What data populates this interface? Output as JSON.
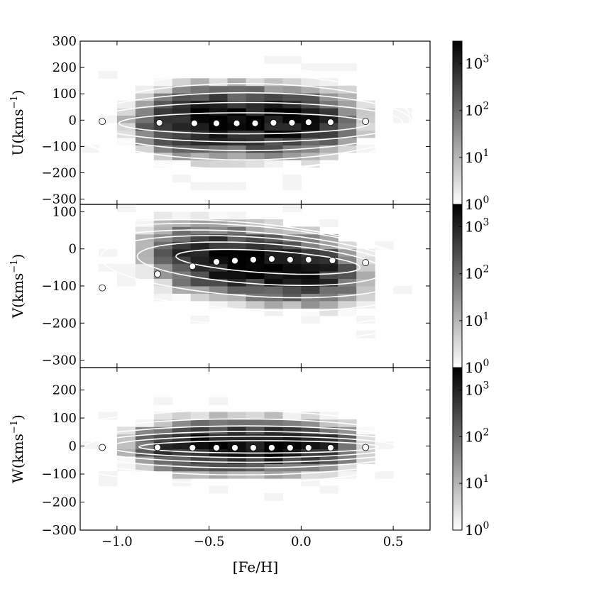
{
  "chart_data": {
    "type": "heatmap",
    "xlabel": "[Fe/H]",
    "xlim": [
      -1.2,
      0.7
    ],
    "xticks": [
      -1.0,
      -0.5,
      0.0,
      0.5
    ],
    "xtick_labels": [
      "−1.0",
      "−0.5",
      "0.0",
      "0.5"
    ],
    "bin_width": 0.1,
    "marker_color": "#ffffff",
    "contour_color": "#ffffff",
    "colormap": [
      "#ffffff",
      "#000000"
    ],
    "panels": [
      {
        "id": "U",
        "ylabel": "U(kms",
        "ylabel_sup": "−1",
        "ylabel_end": ")",
        "ylim": [
          -320,
          300
        ],
        "yticks": [
          300,
          200,
          100,
          0,
          -100,
          -200,
          -300
        ],
        "ytick_labels": [
          "300",
          "200",
          "100",
          "0",
          "−100",
          "−200",
          "−300"
        ],
        "center": [
          -0.3,
          -5
        ],
        "spread_x": 0.42,
        "spread_y": 70,
        "tilt": 0,
        "scatter": [
          [
            -1.08,
            -5
          ],
          [
            -0.77,
            -10
          ],
          [
            -0.58,
            -12
          ],
          [
            -0.46,
            -12
          ],
          [
            -0.35,
            -12
          ],
          [
            -0.25,
            -12
          ],
          [
            -0.15,
            -10
          ],
          [
            -0.05,
            -10
          ],
          [
            0.04,
            -8
          ],
          [
            0.16,
            -8
          ],
          [
            0.35,
            -5
          ]
        ],
        "contours": [
          {
            "cx": -0.31,
            "cy": -12,
            "rx": 0.68,
            "ry": 40
          },
          {
            "cx": -0.3,
            "cy": -8,
            "rx": 0.85,
            "ry": 75
          },
          {
            "cx": -0.3,
            "cy": -6,
            "rx": 0.9,
            "ry": 110
          },
          {
            "cx": -0.31,
            "cy": -6,
            "rx": 0.93,
            "ry": 145
          },
          {
            "cx": -0.32,
            "cy": -6,
            "rx": 0.97,
            "ry": 180
          },
          {
            "cx": -0.34,
            "cy": 5,
            "rx": 0.93,
            "ry": 200
          }
        ]
      },
      {
        "id": "V",
        "ylabel": "V(kms",
        "ylabel_sup": "−1",
        "ylabel_end": ")",
        "ylim": [
          -320,
          120
        ],
        "yticks": [
          100,
          0,
          -100,
          -200,
          -300
        ],
        "ytick_labels": [
          "100",
          "0",
          "−100",
          "−200",
          "−300"
        ],
        "center": [
          -0.25,
          -40
        ],
        "spread_x": 0.4,
        "spread_y": 50,
        "tilt": -60,
        "scatter": [
          [
            -1.08,
            -105
          ],
          [
            -0.78,
            -68
          ],
          [
            -0.59,
            -47
          ],
          [
            -0.46,
            -35
          ],
          [
            -0.36,
            -32
          ],
          [
            -0.26,
            -29
          ],
          [
            -0.16,
            -27
          ],
          [
            -0.06,
            -29
          ],
          [
            0.04,
            -29
          ],
          [
            0.17,
            -31
          ],
          [
            0.35,
            -37
          ]
        ],
        "contours": [
          {
            "cx": -0.18,
            "cy": -35,
            "rx": 0.5,
            "ry": 30
          },
          {
            "cx": -0.22,
            "cy": -40,
            "rx": 0.67,
            "ry": 55
          },
          {
            "cx": -0.26,
            "cy": -48,
            "rx": 0.83,
            "ry": 80
          },
          {
            "cx": -0.31,
            "cy": -58,
            "rx": 0.98,
            "ry": 105
          },
          {
            "cx": -0.35,
            "cy": -70,
            "rx": 1.1,
            "ry": 135
          },
          {
            "cx": -0.4,
            "cy": -85,
            "rx": 1.2,
            "ry": 160
          }
        ]
      },
      {
        "id": "W",
        "ylabel": "W(kms",
        "ylabel_sup": "−1",
        "ylabel_end": ")",
        "ylim": [
          -300,
          280
        ],
        "yticks": [
          200,
          100,
          0,
          -100,
          -200,
          -300
        ],
        "ytick_labels": [
          "200",
          "100",
          "0",
          "−100",
          "−200",
          "−300"
        ],
        "center": [
          -0.3,
          0
        ],
        "spread_x": 0.42,
        "spread_y": 50,
        "tilt": 0,
        "scatter": [
          [
            -1.08,
            -5
          ],
          [
            -0.78,
            -5
          ],
          [
            -0.59,
            -6
          ],
          [
            -0.46,
            -6
          ],
          [
            -0.36,
            -6
          ],
          [
            -0.26,
            -6
          ],
          [
            -0.16,
            -6
          ],
          [
            -0.06,
            -6
          ],
          [
            0.04,
            -6
          ],
          [
            0.16,
            -6
          ],
          [
            0.35,
            -5
          ]
        ],
        "contours": [
          {
            "cx": -0.23,
            "cy": -3,
            "rx": 0.65,
            "ry": 22
          },
          {
            "cx": -0.26,
            "cy": -3,
            "rx": 0.78,
            "ry": 38
          },
          {
            "cx": -0.28,
            "cy": -3,
            "rx": 0.9,
            "ry": 55
          },
          {
            "cx": -0.3,
            "cy": -3,
            "rx": 0.98,
            "ry": 75
          },
          {
            "cx": -0.33,
            "cy": -3,
            "rx": 1.04,
            "ry": 100
          },
          {
            "cx": -0.38,
            "cy": -3,
            "rx": 1.08,
            "ry": 130
          }
        ]
      }
    ],
    "colorbar": {
      "scale": "log",
      "range": [
        1,
        3000
      ],
      "tick_bases": [
        "10",
        "10",
        "10",
        "10"
      ],
      "tick_exponents": [
        "0",
        "1",
        "2",
        "3"
      ],
      "tick_values": [
        1,
        10,
        100,
        1000
      ]
    }
  }
}
